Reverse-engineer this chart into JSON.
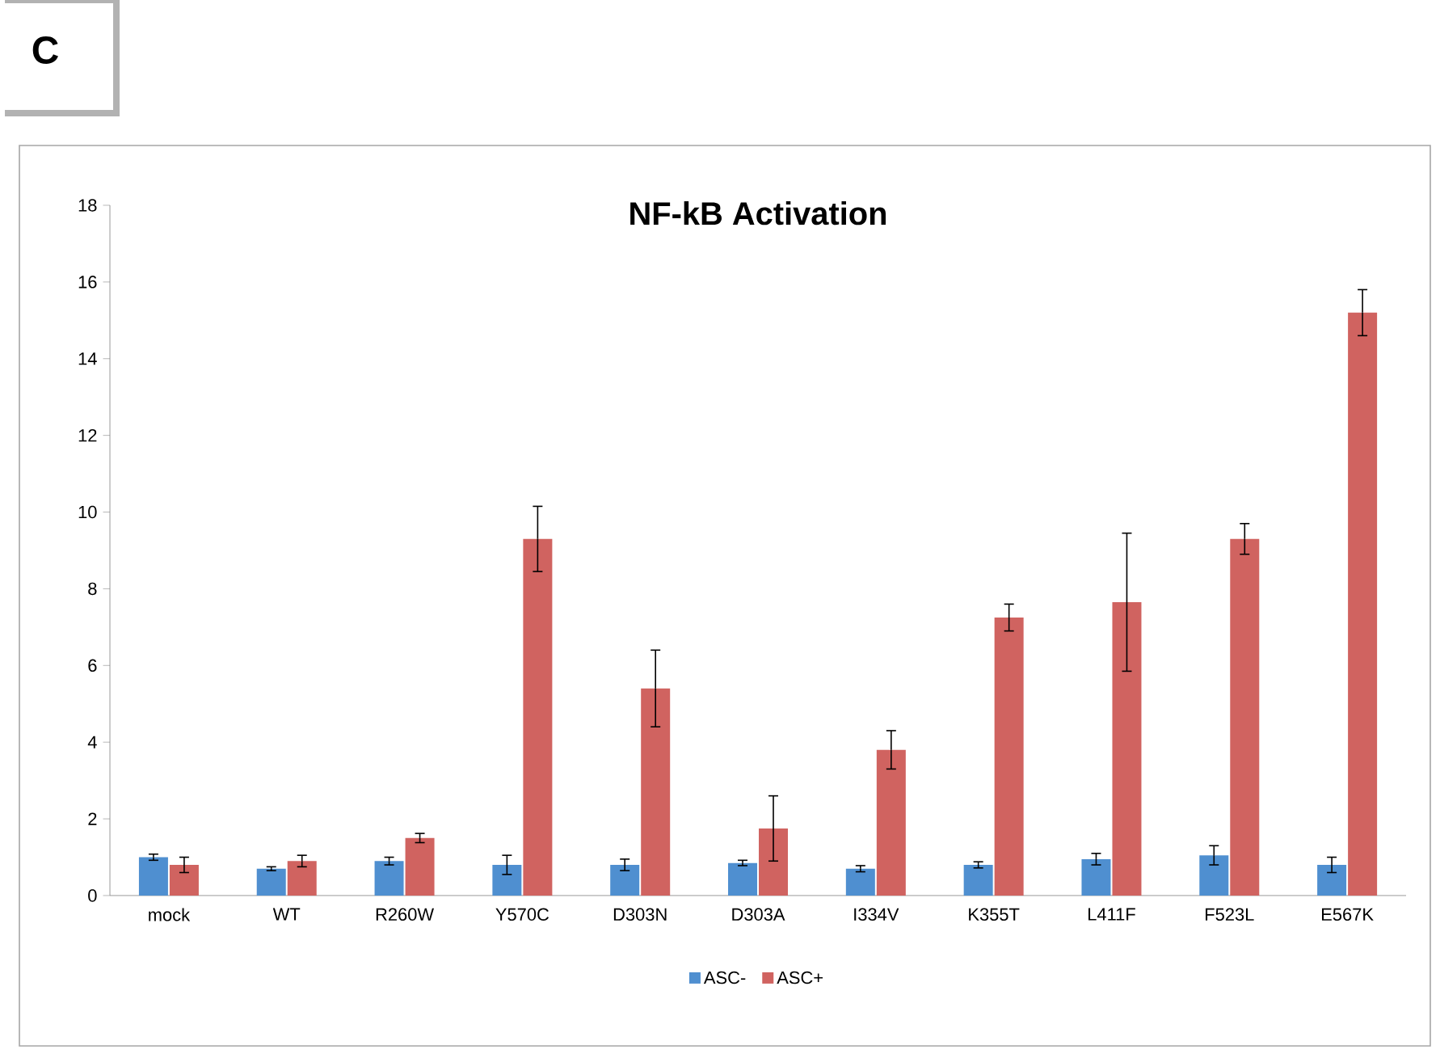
{
  "chart_data": {
    "type": "bar",
    "title": "NF-kB Activation",
    "annotations": [
      "C"
    ],
    "categories": [
      "mock",
      "WT",
      "R260W",
      "Y570C",
      "D303N",
      "D303A",
      "I334V",
      "K355T",
      "L411F",
      "F523L",
      "E567K"
    ],
    "series": [
      {
        "name": "ASC-",
        "color": "#4f8fd0",
        "values": [
          1.0,
          0.7,
          0.9,
          0.8,
          0.8,
          0.85,
          0.7,
          0.8,
          0.95,
          1.05,
          0.8
        ],
        "errors": [
          0.08,
          0.05,
          0.1,
          0.25,
          0.15,
          0.07,
          0.08,
          0.08,
          0.15,
          0.25,
          0.2
        ]
      },
      {
        "name": "ASC+",
        "color": "#d06360",
        "values": [
          0.8,
          0.9,
          1.5,
          9.3,
          5.4,
          1.75,
          3.8,
          7.25,
          7.65,
          9.3,
          15.2
        ],
        "errors": [
          0.2,
          0.15,
          0.12,
          0.85,
          1.0,
          0.85,
          0.5,
          0.35,
          1.8,
          0.4,
          0.6
        ]
      }
    ],
    "ylim": [
      0,
      18
    ],
    "yticks": [
      0,
      2,
      4,
      6,
      8,
      10,
      12,
      14,
      16,
      18
    ],
    "legend": "bottom",
    "grid": false
  }
}
